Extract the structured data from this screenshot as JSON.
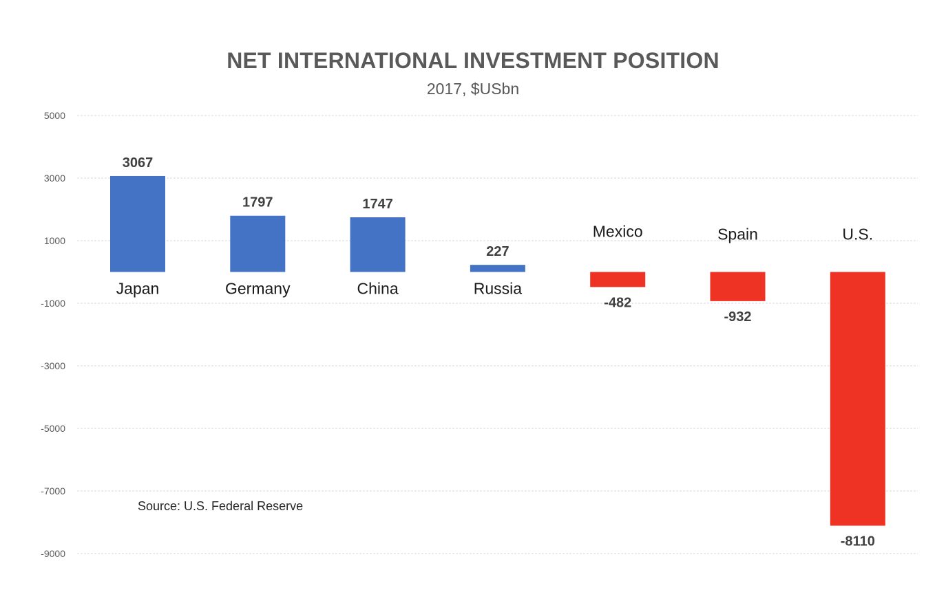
{
  "chart_data": {
    "type": "bar",
    "title": "NET INTERNATIONAL INVESTMENT POSITION",
    "subtitle": "2017, $USbn",
    "source": "Source: U.S. Federal Reserve",
    "categories": [
      "Japan",
      "Germany",
      "China",
      "Russia",
      "Mexico",
      "Spain",
      "U.S."
    ],
    "values": [
      3067,
      1797,
      1747,
      227,
      -482,
      -932,
      -8110
    ],
    "value_labels": [
      "3067",
      "1797",
      "1747",
      "227",
      "-482",
      "-932",
      "-8110"
    ],
    "y_ticks": [
      "5000",
      "3000",
      "1000",
      "-1000",
      "-3000",
      "-5000",
      "-7000",
      "-9000"
    ],
    "ylim": [
      -9000,
      5000
    ],
    "grid": true,
    "legend": "none",
    "xlabel": "",
    "ylabel": "",
    "colors": {
      "positive": "#4472C4",
      "negative": "#EE3224",
      "grid": "#d9d9d9"
    }
  }
}
